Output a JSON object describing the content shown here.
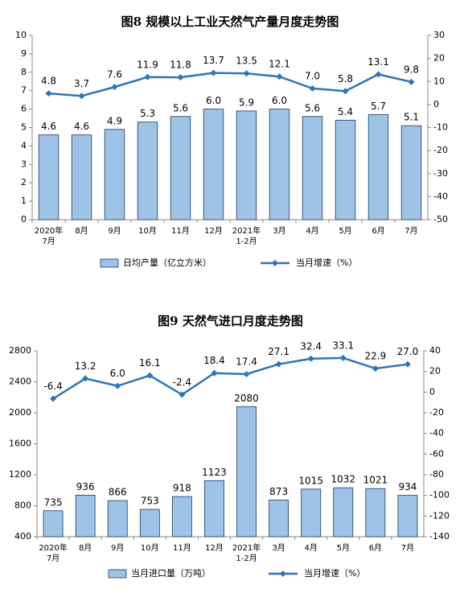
{
  "chart_data": [
    {
      "type": "bar-line",
      "title": "图8 规模以上工业天然气产量月度走势图",
      "categories": [
        "2020年\n7月",
        "8月",
        "9月",
        "10月",
        "11月",
        "12月",
        "2021年\n1-2月",
        "3月",
        "4月",
        "5月",
        "6月",
        "7月"
      ],
      "series": [
        {
          "name": "日均产量（亿立方米）",
          "type": "bar",
          "color": "#9dc3e6",
          "values": [
            4.6,
            4.6,
            4.9,
            5.3,
            5.6,
            6.0,
            5.9,
            6.0,
            5.6,
            5.4,
            5.7,
            5.1
          ],
          "value_labels": [
            "4.6",
            "4.6",
            "4.9",
            "5.3",
            "5.6",
            "6.0",
            "5.9",
            "6.0",
            "5.6",
            "5.4",
            "5.7",
            "5.1"
          ]
        },
        {
          "name": "当月增速（%）",
          "type": "line",
          "axis": "y2",
          "color": "#2e75b6",
          "values": [
            4.8,
            3.7,
            7.6,
            11.9,
            11.8,
            13.7,
            13.5,
            12.1,
            7.0,
            5.8,
            13.1,
            9.8
          ],
          "value_labels": [
            "4.8",
            "3.7",
            "7.6",
            "11.9",
            "11.8",
            "13.7",
            "13.5",
            "12.1",
            "7.0",
            "5.8",
            "13.1",
            "9.8"
          ]
        }
      ],
      "ylim": [
        0,
        10
      ],
      "yticks": [
        0,
        1,
        2,
        3,
        4,
        5,
        6,
        7,
        8,
        9,
        10
      ],
      "y2lim": [
        -50,
        30
      ],
      "y2ticks": [
        -50,
        -40,
        -30,
        -20,
        -10,
        0,
        10,
        20,
        30
      ]
    },
    {
      "type": "bar-line",
      "title": "图9 天然气进口月度走势图",
      "categories": [
        "2020年\n7月",
        "8月",
        "9月",
        "10月",
        "11月",
        "12月",
        "2021年\n1-2月",
        "3月",
        "4月",
        "5月",
        "6月",
        "7月"
      ],
      "series": [
        {
          "name": "当月进口量（万吨）",
          "type": "bar",
          "color": "#9dc3e6",
          "values": [
            735,
            936,
            866,
            753,
            918,
            1123,
            2080,
            873,
            1015,
            1032,
            1021,
            934
          ]
        },
        {
          "name": "当月增速（%）",
          "type": "line",
          "axis": "y2",
          "color": "#2e75b6",
          "values": [
            -6.4,
            13.2,
            6.0,
            16.1,
            -2.4,
            18.4,
            17.4,
            27.1,
            32.4,
            33.1,
            22.9,
            27.0
          ],
          "value_labels": [
            "-6.4",
            "13.2",
            "6.0",
            "16.1",
            "-2.4",
            "18.4",
            "17.4",
            "27.1",
            "32.4",
            "33.1",
            "22.9",
            "27.0"
          ]
        }
      ],
      "ylim": [
        400,
        2800
      ],
      "yticks": [
        400,
        800,
        1200,
        1600,
        2000,
        2400,
        2800
      ],
      "y2lim": [
        -140,
        40
      ],
      "y2ticks": [
        -140,
        -120,
        -100,
        -80,
        -60,
        -40,
        -20,
        0,
        20,
        40
      ]
    }
  ]
}
